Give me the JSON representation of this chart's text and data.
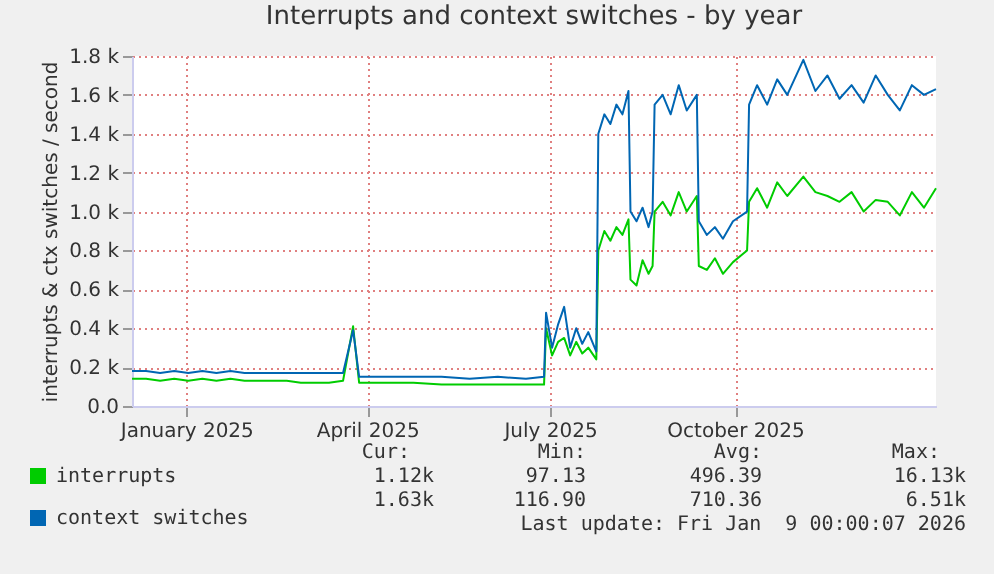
{
  "chart_data": {
    "type": "line",
    "title": "Interrupts and context switches - by year",
    "ylabel": "interrupts & ctx switches / second",
    "x": [
      "2024-12-05",
      "2024-12-12",
      "2024-12-19",
      "2024-12-26",
      "2025-01-02",
      "2025-01-09",
      "2025-01-16",
      "2025-01-23",
      "2025-01-30",
      "2025-02-06",
      "2025-02-13",
      "2025-02-20",
      "2025-02-27",
      "2025-03-06",
      "2025-03-13",
      "2025-03-20",
      "2025-03-25",
      "2025-03-28",
      "2025-04-10",
      "2025-04-24",
      "2025-05-08",
      "2025-05-22",
      "2025-06-05",
      "2025-06-19",
      "2025-06-28",
      "2025-06-29",
      "2025-07-02",
      "2025-07-05",
      "2025-07-08",
      "2025-07-11",
      "2025-07-14",
      "2025-07-17",
      "2025-07-20",
      "2025-07-24",
      "2025-07-25",
      "2025-07-28",
      "2025-07-31",
      "2025-08-03",
      "2025-08-06",
      "2025-08-09",
      "2025-08-10",
      "2025-08-13",
      "2025-08-16",
      "2025-08-19",
      "2025-08-21",
      "2025-08-22",
      "2025-08-26",
      "2025-08-30",
      "2025-09-03",
      "2025-09-07",
      "2025-09-12",
      "2025-09-13",
      "2025-09-17",
      "2025-09-21",
      "2025-09-25",
      "2025-09-30",
      "2025-10-07",
      "2025-10-08",
      "2025-10-12",
      "2025-10-17",
      "2025-10-22",
      "2025-10-27",
      "2025-11-04",
      "2025-11-10",
      "2025-11-16",
      "2025-11-22",
      "2025-11-28",
      "2025-12-04",
      "2025-12-10",
      "2025-12-16",
      "2025-12-22",
      "2025-12-28",
      "2026-01-03",
      "2026-01-09"
    ],
    "series": [
      {
        "name": "interrupts",
        "color": "#00cc00",
        "values": [
          140,
          140,
          130,
          140,
          130,
          140,
          130,
          140,
          130,
          130,
          130,
          130,
          120,
          120,
          120,
          130,
          410,
          120,
          120,
          120,
          110,
          110,
          110,
          110,
          110,
          400,
          260,
          330,
          350,
          260,
          330,
          270,
          300,
          240,
          800,
          900,
          850,
          920,
          880,
          960,
          650,
          620,
          750,
          680,
          720,
          1000,
          1050,
          980,
          1100,
          1000,
          1080,
          720,
          700,
          760,
          680,
          740,
          800,
          1050,
          1120,
          1020,
          1150,
          1080,
          1180,
          1100,
          1080,
          1050,
          1100,
          1000,
          1060,
          1050,
          980,
          1100,
          1020,
          1120
        ]
      },
      {
        "name": "context switches",
        "color": "#0066b3",
        "values": [
          180,
          180,
          170,
          180,
          170,
          180,
          170,
          180,
          170,
          170,
          170,
          170,
          170,
          170,
          170,
          170,
          390,
          150,
          150,
          150,
          150,
          140,
          150,
          140,
          150,
          480,
          300,
          420,
          510,
          300,
          400,
          320,
          380,
          280,
          1400,
          1500,
          1450,
          1550,
          1500,
          1620,
          1000,
          950,
          1020,
          920,
          1000,
          1550,
          1600,
          1500,
          1650,
          1520,
          1600,
          950,
          880,
          920,
          860,
          950,
          1000,
          1550,
          1650,
          1550,
          1680,
          1600,
          1780,
          1620,
          1700,
          1580,
          1650,
          1560,
          1700,
          1600,
          1520,
          1650,
          1600,
          1630
        ]
      }
    ],
    "xlim": [
      "2024-12-05",
      "2026-01-09"
    ],
    "xticks": [
      {
        "value": "2025-01-01",
        "label": "January 2025"
      },
      {
        "value": "2025-04-01",
        "label": "April 2025"
      },
      {
        "value": "2025-07-01",
        "label": "July 2025"
      },
      {
        "value": "2025-10-01",
        "label": "October 2025"
      }
    ],
    "ylim": [
      0,
      1800
    ],
    "yticks": [
      {
        "value": 0,
        "label": "0.0"
      },
      {
        "value": 200,
        "label": "0.2 k"
      },
      {
        "value": 400,
        "label": "0.4 k"
      },
      {
        "value": 600,
        "label": "0.6 k"
      },
      {
        "value": 800,
        "label": "0.8 k"
      },
      {
        "value": 1000,
        "label": "1.0 k"
      },
      {
        "value": 1200,
        "label": "1.2 k"
      },
      {
        "value": 1400,
        "label": "1.4 k"
      },
      {
        "value": 1600,
        "label": "1.6 k"
      },
      {
        "value": 1800,
        "label": "1.8 k"
      }
    ],
    "grid": true,
    "legend": "bottom left",
    "annotations": [
      "Cur:",
      "Min:",
      "Avg:",
      "Max:",
      "1.12k",
      "97.13",
      "496.39",
      "16.13k",
      "1.63k",
      "116.90",
      "710.36",
      "6.51k",
      "Last update: Fri Jan  9 00:00:07 2026"
    ]
  }
}
